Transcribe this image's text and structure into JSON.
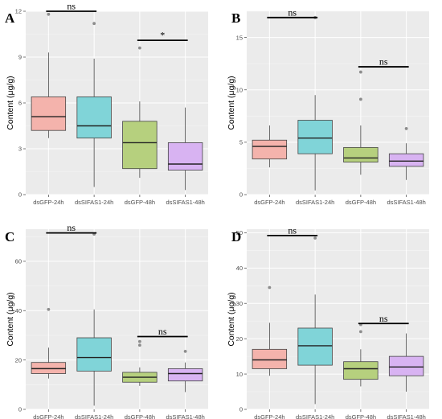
{
  "colors": {
    "dsGFP-24h": "#f4b3ac",
    "dsSIFAS1-24h": "#80d4d8",
    "dsGFP-48h": "#b6d07e",
    "dsSIFAS1-48h": "#d8b3f2"
  },
  "chart_data": [
    {
      "type": "box",
      "panel_label": "A",
      "ylabel": "Content (μg/g)",
      "categories": [
        "dsGFP-24h",
        "dsSIFAS1-24h",
        "dsGFP-48h",
        "dsSIFAS1-48h"
      ],
      "ylim": [
        0,
        12
      ],
      "yticks": [
        0,
        3,
        6,
        9,
        12
      ],
      "boxes": [
        {
          "min": 3.7,
          "q1": 4.2,
          "median": 5.1,
          "q3": 6.4,
          "max": 9.3,
          "outliers": [
            11.8
          ]
        },
        {
          "min": 0.5,
          "q1": 3.7,
          "median": 4.5,
          "q3": 6.4,
          "max": 8.9,
          "outliers": [
            11.2
          ]
        },
        {
          "min": 1.1,
          "q1": 1.7,
          "median": 3.4,
          "q3": 4.8,
          "max": 6.1,
          "outliers": [
            9.6
          ]
        },
        {
          "min": 0.3,
          "q1": 1.6,
          "median": 2.0,
          "q3": 3.4,
          "max": 5.7,
          "outliers": []
        }
      ],
      "annotations": [
        {
          "from": 0,
          "to": 1,
          "y": 12.0,
          "text": "ns"
        },
        {
          "from": 2,
          "to": 3,
          "y": 10.1,
          "text": "*"
        }
      ]
    },
    {
      "type": "box",
      "panel_label": "B",
      "ylabel": "Content (μg/g)",
      "categories": [
        "dsGFP-24h",
        "dsSIFAS1-24h",
        "dsGFP-48h",
        "dsSIFAS1-48h"
      ],
      "ylim": [
        0,
        17.5
      ],
      "yticks": [
        0,
        5,
        10,
        15
      ],
      "boxes": [
        {
          "min": 2.6,
          "q1": 3.4,
          "median": 4.6,
          "q3": 5.2,
          "max": 6.6,
          "outliers": []
        },
        {
          "min": 0.4,
          "q1": 3.9,
          "median": 5.4,
          "q3": 7.1,
          "max": 9.5,
          "outliers": [
            16.9
          ]
        },
        {
          "min": 1.9,
          "q1": 3.1,
          "median": 3.5,
          "q3": 4.5,
          "max": 6.6,
          "outliers": [
            9.1,
            11.7
          ]
        },
        {
          "min": 1.4,
          "q1": 2.7,
          "median": 3.2,
          "q3": 3.9,
          "max": 4.9,
          "outliers": [
            6.3
          ]
        }
      ],
      "annotations": [
        {
          "from": 0,
          "to": 1,
          "y": 16.9,
          "text": "ns"
        },
        {
          "from": 2,
          "to": 3,
          "y": 12.2,
          "text": "ns"
        }
      ]
    },
    {
      "type": "box",
      "panel_label": "C",
      "ylabel": "Content (μg/g)",
      "categories": [
        "dsGFP-24h",
        "dsSIFAS1-24h",
        "dsGFP-48h",
        "dsSIFAS1-48h"
      ],
      "ylim": [
        0,
        73
      ],
      "yticks": [
        0,
        20,
        40,
        60
      ],
      "boxes": [
        {
          "min": 12.5,
          "q1": 14.5,
          "median": 16.5,
          "q3": 19.0,
          "max": 25.0,
          "outliers": [
            40.5
          ]
        },
        {
          "min": 1.5,
          "q1": 15.5,
          "median": 21.0,
          "q3": 29.0,
          "max": 40.5,
          "outliers": [
            71.0
          ]
        },
        {
          "min": 9.5,
          "q1": 11.0,
          "median": 13.0,
          "q3": 15.0,
          "max": 17.0,
          "outliers": [
            26.0,
            27.5
          ]
        },
        {
          "min": 7.0,
          "q1": 11.5,
          "median": 14.5,
          "q3": 16.5,
          "max": 19.0,
          "outliers": [
            23.5
          ]
        }
      ],
      "annotations": [
        {
          "from": 0,
          "to": 1,
          "y": 71.5,
          "text": "ns"
        },
        {
          "from": 2,
          "to": 3,
          "y": 29.5,
          "text": "ns"
        }
      ]
    },
    {
      "type": "box",
      "panel_label": "D",
      "ylabel": "Content (μg/g)",
      "categories": [
        "dsGFP-24h",
        "dsSIFAS1-24h",
        "dsGFP-48h",
        "dsSIFAS1-48h"
      ],
      "ylim": [
        0,
        51
      ],
      "yticks": [
        0,
        10,
        20,
        30,
        40,
        50
      ],
      "boxes": [
        {
          "min": 9.5,
          "q1": 11.5,
          "median": 14.0,
          "q3": 17.0,
          "max": 24.5,
          "outliers": [
            34.5
          ]
        },
        {
          "min": 1.5,
          "q1": 12.5,
          "median": 18.0,
          "q3": 23.0,
          "max": 32.5,
          "outliers": [
            48.5
          ]
        },
        {
          "min": 6.5,
          "q1": 8.5,
          "median": 11.5,
          "q3": 13.5,
          "max": 17.0,
          "outliers": [
            22.0,
            24.0
          ]
        },
        {
          "min": 5.0,
          "q1": 9.5,
          "median": 12.0,
          "q3": 15.0,
          "max": 21.5,
          "outliers": []
        }
      ],
      "annotations": [
        {
          "from": 0,
          "to": 1,
          "y": 49.2,
          "text": "ns"
        },
        {
          "from": 2,
          "to": 3,
          "y": 24.3,
          "text": "ns"
        }
      ]
    }
  ]
}
